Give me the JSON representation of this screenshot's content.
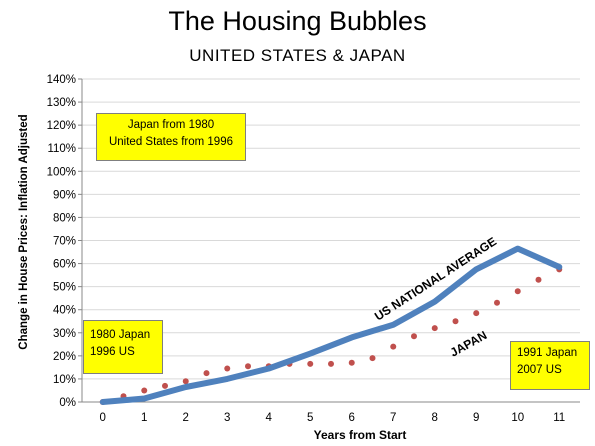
{
  "header": {
    "title": "The Housing Bubbles",
    "subtitle": "UNITED STATES & JAPAN"
  },
  "notes": {
    "top_line1": "Japan from 1980",
    "top_line2": "United States from 1996",
    "left_line1": "1980 Japan",
    "left_line2": "1996 US",
    "right_line1": "1991 Japan",
    "right_line2": "2007 US"
  },
  "colors": {
    "us_line": "#4f81bd",
    "japan_dots": "#c0504d",
    "note_background": "#ffff00",
    "gridline": "#d9d9d9"
  },
  "chart_data": {
    "type": "line",
    "title": "The Housing Bubbles",
    "subtitle": "UNITED STATES & JAPAN",
    "xlabel": "Years from Start",
    "ylabel": "Change in House Prices: Inflation Adjusted",
    "xlim": [
      0,
      11
    ],
    "ylim": [
      0,
      140
    ],
    "y_ticks": [
      "0%",
      "10%",
      "20%",
      "30%",
      "40%",
      "50%",
      "60%",
      "70%",
      "80%",
      "90%",
      "100%",
      "110%",
      "120%",
      "130%",
      "140%"
    ],
    "x_ticks": [
      "0",
      "1",
      "2",
      "3",
      "4",
      "5",
      "6",
      "7",
      "8",
      "9",
      "10",
      "11"
    ],
    "grid": true,
    "series": [
      {
        "name": "US NATIONAL AVERAGE",
        "style": "solid",
        "color": "#4f81bd",
        "x": [
          0,
          1,
          2,
          3,
          4,
          5,
          6,
          7,
          8,
          9,
          10,
          11
        ],
        "y": [
          0,
          1.5,
          6.5,
          10,
          14.5,
          21,
          28,
          33.5,
          43.5,
          57.5,
          66.5,
          58.5
        ]
      },
      {
        "name": "JAPAN",
        "style": "dotted",
        "color": "#c0504d",
        "x": [
          0,
          0.5,
          1,
          1.5,
          2,
          2.5,
          3,
          3.5,
          4,
          4.5,
          5,
          5.5,
          6,
          6.5,
          7,
          7.5,
          8,
          8.5,
          9,
          9.5,
          10,
          10.5,
          11
        ],
        "y": [
          0,
          2.5,
          5,
          7,
          9,
          12.5,
          14.5,
          15.5,
          15.5,
          16.5,
          16.5,
          16.5,
          17,
          19,
          24,
          28.5,
          32,
          35,
          38.5,
          43,
          48,
          53,
          57.5
        ]
      }
    ]
  }
}
